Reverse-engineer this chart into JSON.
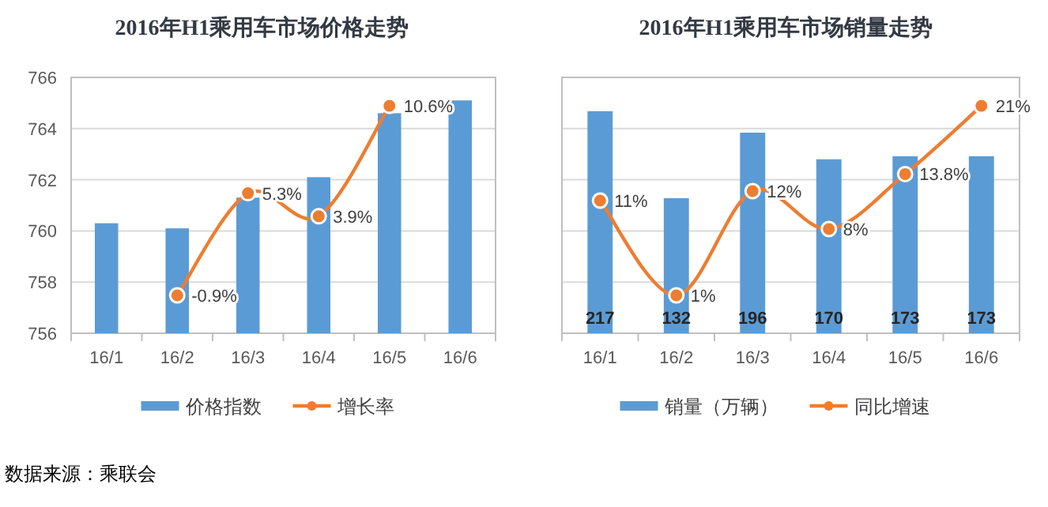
{
  "chart_data": [
    {
      "type": "bar",
      "title": "2016年H1乘用车市场价格走势",
      "categories": [
        "16/1",
        "16/2",
        "16/3",
        "16/4",
        "16/5",
        "16/6"
      ],
      "series": [
        {
          "name": "价格指数",
          "color": "#5b9bd5",
          "values": [
            760.3,
            760.1,
            761.3,
            762.1,
            764.6,
            765.1
          ]
        },
        {
          "name": "增长率",
          "type": "line",
          "axis": "y2",
          "color": "#ed7d31",
          "values": [
            null,
            -0.9,
            5.3,
            3.9,
            10.6,
            null
          ],
          "value_labels": [
            null,
            "-0.9%",
            "5.3%",
            "3.9%",
            "10.6%",
            null
          ]
        }
      ],
      "ylim": [
        756,
        766
      ],
      "yticks": [
        756,
        758,
        760,
        762,
        764,
        766
      ],
      "grid": "y",
      "legend": "bottom",
      "marker": "circle",
      "annotations": [
        "数据来源：乘联会"
      ]
    },
    {
      "type": "bar",
      "title": "2016年H1乘用车市场销量走势",
      "categories": [
        "16/1",
        "16/2",
        "16/3",
        "16/4",
        "16/5",
        "16/6"
      ],
      "series": [
        {
          "name": "销量（万辆）",
          "color": "#5b9bd5",
          "values": [
            217,
            132,
            196,
            170,
            173,
            173
          ],
          "value_labels": [
            "217",
            "132",
            "196",
            "170",
            "173",
            "173"
          ]
        },
        {
          "name": "同比增速",
          "type": "line",
          "axis": "y2",
          "color": "#ed7d31",
          "values": [
            11,
            1,
            12,
            8,
            13.8,
            21
          ],
          "value_labels": [
            "11%",
            "1%",
            "12%",
            "8%",
            "13.8%",
            "21%"
          ]
        }
      ],
      "ylim": [
        0,
        250
      ],
      "yticks": [
        {
          "value": 0,
          "label": null
        },
        {
          "value": 50,
          "label": null
        },
        {
          "value": 100,
          "label": null
        },
        {
          "value": 150,
          "label": null
        },
        {
          "value": 200,
          "label": null
        },
        {
          "value": 250,
          "label": null
        }
      ],
      "tick_labels": "x",
      "grid": "y",
      "legend": "bottom",
      "marker": "circle"
    }
  ]
}
